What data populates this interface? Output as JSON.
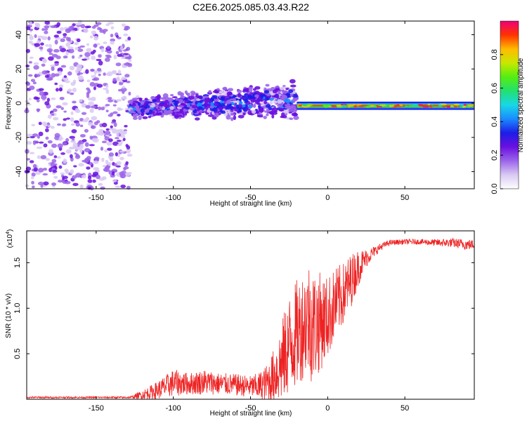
{
  "figure_title": "C2E6.2025.085.03.43.R22",
  "colors": {
    "snr_line": "#ee2222",
    "colormap": [
      "#ffffff",
      "#d9c9f3",
      "#9b64ea",
      "#6a10e0",
      "#1d1de6",
      "#1a8cff",
      "#18d8e6",
      "#22e070",
      "#55ee11",
      "#c8e800",
      "#ffbb00",
      "#ff3300",
      "#ee0077"
    ]
  },
  "chart_data": [
    {
      "type": "heatmap",
      "xlabel": "Height of straight line (km)",
      "ylabel": "Frequency (Hz)",
      "xlim": [
        -195,
        95
      ],
      "ylim": [
        -50,
        48
      ],
      "xticks": [
        -150,
        -100,
        -50,
        0,
        50
      ],
      "xtick_labels": [
        "-150",
        "-100",
        "-50",
        "0",
        "50"
      ],
      "yticks": [
        -40,
        -20,
        0,
        20,
        40
      ],
      "ytick_labels": [
        "-40",
        "-20",
        "0",
        "20",
        "40"
      ],
      "colorbar": {
        "label": "Normalized spectral amplitude",
        "range": [
          0,
          1
        ],
        "ticks": [
          0.0,
          0.2,
          0.4,
          0.6,
          0.8
        ],
        "tick_labels": [
          "0.0",
          "0.2",
          "0.4",
          "0.6",
          "0.8"
        ]
      },
      "regions": [
        {
          "x_range": [
            -195,
            -128
          ],
          "description": "scattered weak noise across full band",
          "amplitude": [
            0.05,
            0.25
          ]
        },
        {
          "x_range": [
            -128,
            -20
          ],
          "center_freq_hz": [
            -3,
            2
          ],
          "half_width_hz": [
            6,
            12
          ],
          "amplitude": [
            0.1,
            0.45
          ]
        },
        {
          "x_range": [
            -20,
            95
          ],
          "center_freq_hz": -1.5,
          "half_width_hz": 2,
          "amplitude": [
            0.5,
            1.0
          ]
        }
      ]
    },
    {
      "type": "line",
      "xlabel": "Height of straight line (km)",
      "ylabel": "SNR (10 * v/v)",
      "y_scale_label": "(x10",
      "y_scale_exponent": "4",
      "xlim": [
        -195,
        95
      ],
      "ylim": [
        0,
        1.85
      ],
      "xticks": [
        -150,
        -100,
        -50,
        0,
        50
      ],
      "xtick_labels": [
        "-150",
        "-100",
        "-50",
        "0",
        "50"
      ],
      "yticks": [
        0.5,
        1.0,
        1.5
      ],
      "ytick_labels": [
        "0.5",
        "1.0",
        "1.5"
      ],
      "series": [
        {
          "x": [
            -195,
            -180,
            -160,
            -140,
            -128,
            -120,
            -110,
            -100,
            -90,
            -80,
            -70,
            -60,
            -50,
            -45,
            -40,
            -35,
            -30,
            -25,
            -20,
            -15,
            -12,
            -10,
            -5,
            0,
            5,
            10,
            15,
            20,
            25,
            30,
            35,
            40,
            50,
            60,
            70,
            80,
            90,
            95
          ],
          "y": [
            0.02,
            0.02,
            0.02,
            0.02,
            0.02,
            0.05,
            0.1,
            0.18,
            0.17,
            0.19,
            0.17,
            0.16,
            0.14,
            0.14,
            0.17,
            0.25,
            0.4,
            0.6,
            0.72,
            0.85,
            0.9,
            0.8,
            0.85,
            0.9,
            1.05,
            1.15,
            1.3,
            1.45,
            1.55,
            1.62,
            1.68,
            1.72,
            1.73,
            1.73,
            1.72,
            1.72,
            1.7,
            1.7
          ],
          "noise_amplitude": [
            0.01,
            0.01,
            0.01,
            0.01,
            0.01,
            0.05,
            0.1,
            0.15,
            0.12,
            0.14,
            0.12,
            0.12,
            0.12,
            0.15,
            0.2,
            0.3,
            0.45,
            0.55,
            0.6,
            0.6,
            0.65,
            0.65,
            0.55,
            0.45,
            0.4,
            0.35,
            0.3,
            0.2,
            0.1,
            0.06,
            0.04,
            0.03,
            0.03,
            0.03,
            0.04,
            0.05,
            0.06,
            0.05
          ]
        }
      ]
    }
  ]
}
